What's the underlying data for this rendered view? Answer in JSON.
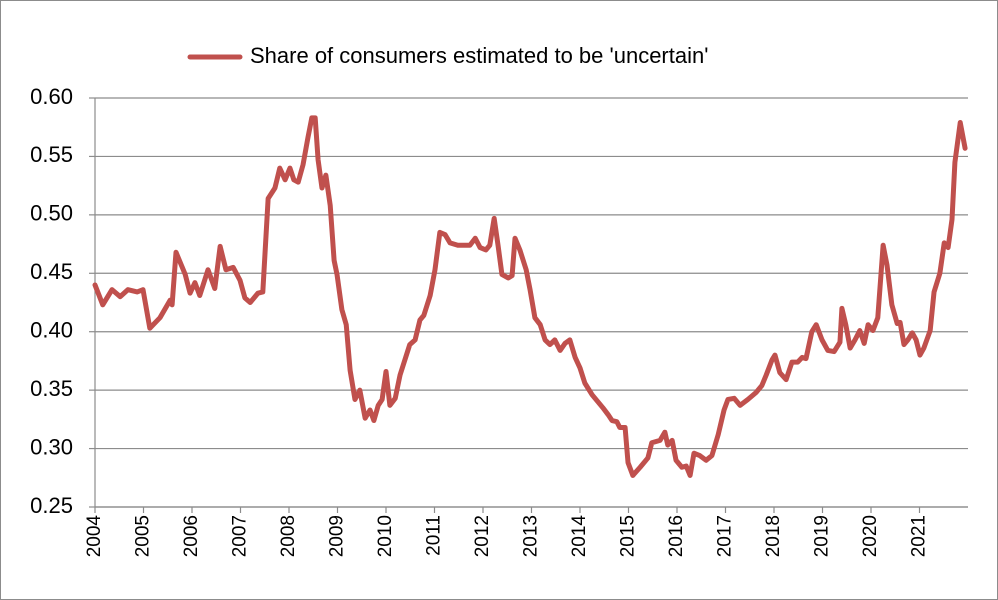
{
  "chart_data": {
    "type": "line",
    "x": [
      2004.0,
      2004.16,
      2004.35,
      2004.52,
      2004.68,
      2004.87,
      2004.99,
      2005.13,
      2005.34,
      2005.55,
      2005.59,
      2005.67,
      2005.86,
      2005.96,
      2006.06,
      2006.16,
      2006.33,
      2006.47,
      2006.58,
      2006.7,
      2006.85,
      2006.99,
      2007.09,
      2007.2,
      2007.36,
      2007.46,
      2007.57,
      2007.71,
      2007.81,
      2007.92,
      2008.02,
      2008.1,
      2008.19,
      2008.29,
      2008.39,
      2008.47,
      2008.54,
      2008.6,
      2008.68,
      2008.76,
      2008.85,
      2008.93,
      2008.99,
      2009.09,
      2009.18,
      2009.26,
      2009.36,
      2009.46,
      2009.57,
      2009.67,
      2009.75,
      2009.84,
      2009.92,
      2010.0,
      2010.08,
      2010.19,
      2010.29,
      2010.39,
      2010.49,
      2010.6,
      2010.7,
      2010.78,
      2010.91,
      2011.01,
      2011.11,
      2011.22,
      2011.32,
      2011.48,
      2011.63,
      2011.73,
      2011.84,
      2011.94,
      2012.06,
      2012.14,
      2012.23,
      2012.31,
      2012.39,
      2012.52,
      2012.6,
      2012.66,
      2012.76,
      2012.89,
      2012.97,
      2013.07,
      2013.18,
      2013.28,
      2013.38,
      2013.48,
      2013.59,
      2013.69,
      2013.79,
      2013.9,
      2014.0,
      2014.1,
      2014.25,
      2014.37,
      2014.47,
      2014.58,
      2014.66,
      2014.76,
      2014.82,
      2014.93,
      2014.99,
      2015.09,
      2015.24,
      2015.4,
      2015.48,
      2015.65,
      2015.75,
      2015.81,
      2015.9,
      2015.98,
      2016.1,
      2016.19,
      2016.27,
      2016.35,
      2016.47,
      2016.6,
      2016.72,
      2016.85,
      2016.97,
      2017.05,
      2017.18,
      2017.3,
      2017.46,
      2017.63,
      2017.75,
      2017.84,
      2017.96,
      2018.02,
      2018.12,
      2018.25,
      2018.37,
      2018.49,
      2018.58,
      2018.66,
      2018.78,
      2018.87,
      2018.99,
      2019.11,
      2019.24,
      2019.36,
      2019.4,
      2019.48,
      2019.57,
      2019.67,
      2019.77,
      2019.86,
      2019.94,
      2020.04,
      2020.14,
      2020.25,
      2020.33,
      2020.43,
      2020.54,
      2020.6,
      2020.68,
      2020.76,
      2020.85,
      2020.93,
      2021.01,
      2021.09,
      2021.22,
      2021.3,
      2021.42,
      2021.51,
      2021.59,
      2021.67,
      2021.73,
      2021.84,
      2021.94
    ],
    "series": [
      {
        "name": "Share of consumers estimated to be 'uncertain'",
        "color": "#c0504d",
        "values": [
          0.44,
          0.423,
          0.436,
          0.43,
          0.436,
          0.434,
          0.436,
          0.403,
          0.412,
          0.427,
          0.423,
          0.468,
          0.449,
          0.433,
          0.442,
          0.431,
          0.453,
          0.437,
          0.473,
          0.453,
          0.455,
          0.444,
          0.429,
          0.425,
          0.433,
          0.434,
          0.514,
          0.523,
          0.54,
          0.53,
          0.54,
          0.53,
          0.528,
          0.543,
          0.566,
          0.583,
          0.583,
          0.547,
          0.523,
          0.534,
          0.508,
          0.461,
          0.449,
          0.419,
          0.406,
          0.367,
          0.342,
          0.35,
          0.326,
          0.333,
          0.324,
          0.337,
          0.342,
          0.366,
          0.337,
          0.343,
          0.363,
          0.376,
          0.389,
          0.393,
          0.41,
          0.414,
          0.431,
          0.453,
          0.485,
          0.483,
          0.476,
          0.474,
          0.474,
          0.474,
          0.48,
          0.472,
          0.47,
          0.474,
          0.497,
          0.474,
          0.449,
          0.446,
          0.448,
          0.48,
          0.47,
          0.453,
          0.436,
          0.412,
          0.406,
          0.393,
          0.389,
          0.393,
          0.384,
          0.39,
          0.393,
          0.378,
          0.369,
          0.356,
          0.346,
          0.34,
          0.335,
          0.329,
          0.324,
          0.323,
          0.318,
          0.318,
          0.288,
          0.277,
          0.284,
          0.292,
          0.305,
          0.307,
          0.314,
          0.303,
          0.307,
          0.29,
          0.284,
          0.285,
          0.277,
          0.296,
          0.294,
          0.29,
          0.294,
          0.312,
          0.333,
          0.342,
          0.343,
          0.337,
          0.342,
          0.348,
          0.354,
          0.363,
          0.376,
          0.38,
          0.365,
          0.359,
          0.374,
          0.374,
          0.378,
          0.377,
          0.4,
          0.406,
          0.393,
          0.384,
          0.383,
          0.391,
          0.42,
          0.406,
          0.386,
          0.393,
          0.401,
          0.39,
          0.406,
          0.401,
          0.412,
          0.474,
          0.457,
          0.423,
          0.407,
          0.408,
          0.389,
          0.393,
          0.399,
          0.393,
          0.38,
          0.386,
          0.401,
          0.434,
          0.45,
          0.476,
          0.472,
          0.496,
          0.545,
          0.579,
          0.557
        ]
      }
    ],
    "xlim": [
      2004,
      2022
    ],
    "xticks": [
      2004,
      2005,
      2006,
      2007,
      2008,
      2009,
      2010,
      2011,
      2012,
      2013,
      2014,
      2015,
      2016,
      2017,
      2018,
      2019,
      2020,
      2021
    ],
    "ylim": [
      0.25,
      0.6
    ],
    "yticks": [
      0.25,
      {
        "value": 0.3,
        "label": "0.30"
      },
      0.35,
      {
        "value": 0.4,
        "label": "0.40"
      },
      0.45,
      {
        "value": 0.5,
        "label": "0.50"
      },
      0.55,
      {
        "value": 0.6,
        "label": "0.60"
      }
    ],
    "grid": true,
    "legend": "top"
  }
}
